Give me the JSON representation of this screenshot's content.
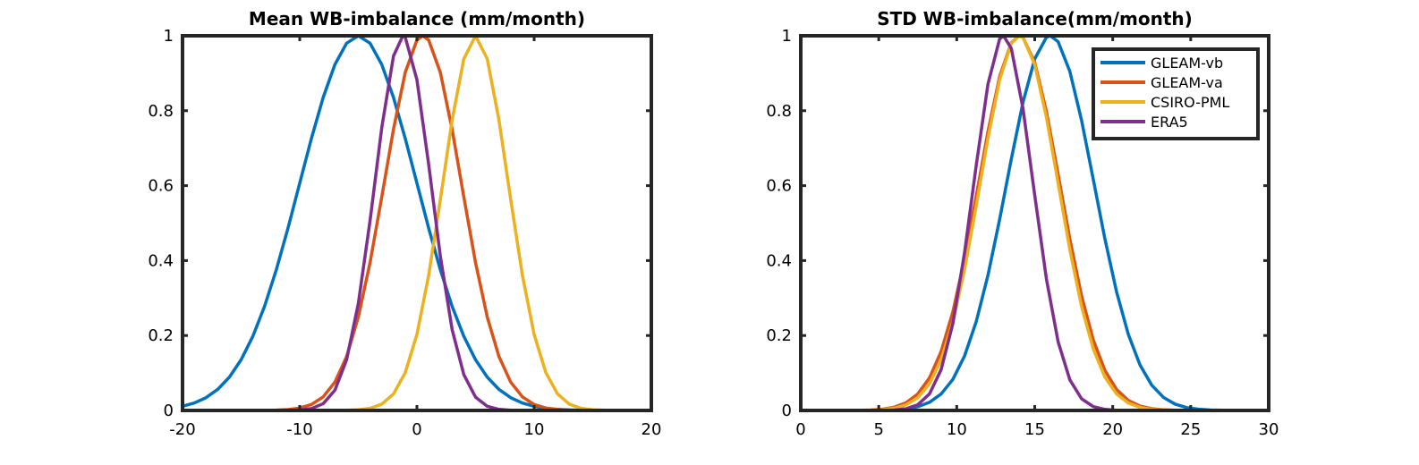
{
  "chart_data": [
    {
      "type": "line",
      "title": "Mean WB-imbalance (mm/month)",
      "xlabel": "",
      "ylabel": "",
      "xlim": [
        -20,
        20
      ],
      "ylim": [
        0,
        1
      ],
      "xticks": [
        -20,
        -10,
        0,
        10,
        20
      ],
      "xtick_labels": [
        "-20",
        "-10",
        "0",
        "10",
        "20"
      ],
      "yticks": [
        0,
        0.2,
        0.4,
        0.6,
        0.8,
        1
      ],
      "ytick_labels": [
        "0",
        "0.2",
        "0.4",
        "0.6",
        "0.8",
        "1"
      ],
      "grid": false,
      "series": [
        {
          "name": "GLEAM-vb",
          "color": "#0072BD",
          "mean": -5,
          "sigma": 5
        },
        {
          "name": "GLEAM-va",
          "color": "#D95319",
          "mean": 0.5,
          "sigma": 3.3
        },
        {
          "name": "CSIRO-PML",
          "color": "#EDB120",
          "mean": 5,
          "sigma": 2.8
        },
        {
          "name": "ERA5",
          "color": "#7E2F8E",
          "mean": -1.2,
          "sigma": 2.4
        }
      ]
    },
    {
      "type": "line",
      "title": "STD WB-imbalance(mm/month)",
      "xlabel": "",
      "ylabel": "",
      "xlim": [
        0,
        30
      ],
      "ylim": [
        0,
        1
      ],
      "xticks": [
        0,
        5,
        10,
        15,
        20,
        25,
        30
      ],
      "xtick_labels": [
        "0",
        "5",
        "10",
        "15",
        "20",
        "25",
        "30"
      ],
      "yticks": [
        0,
        0.2,
        0.4,
        0.6,
        0.8,
        1
      ],
      "ytick_labels": [
        "0",
        "0.2",
        "0.4",
        "0.6",
        "0.8",
        "1"
      ],
      "grid": false,
      "legend_position": "top-right",
      "series": [
        {
          "name": "GLEAM-vb",
          "color": "#0072BD",
          "mean": 16,
          "sigma": 2.8
        },
        {
          "name": "GLEAM-va",
          "color": "#D95319",
          "mean": 14,
          "sigma": 2.6
        },
        {
          "name": "CSIRO-PML",
          "color": "#EDB120",
          "mean": 14,
          "sigma": 2.5
        },
        {
          "name": "ERA5",
          "color": "#7E2F8E",
          "mean": 13,
          "sigma": 1.9
        }
      ]
    }
  ]
}
